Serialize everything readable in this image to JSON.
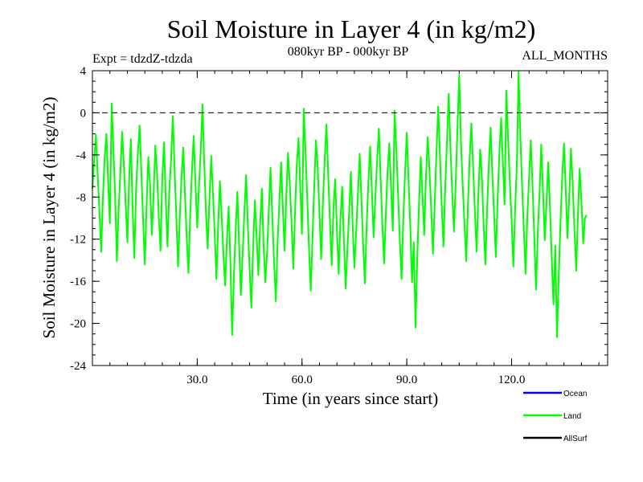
{
  "chart_data": {
    "type": "line",
    "title": "Soil Moisture in Layer 4 (in kg/m2)",
    "subtitle_left": "Expt = tdzdZ-tdzda",
    "subtitle_center": "080kyr BP - 000kyr BP",
    "subtitle_right": "ALL_MONTHS",
    "xlabel": "Time (in years since start)",
    "ylabel": "Soil Moisture in Layer 4 (in kg/m2)",
    "xlim": [
      0,
      147.5
    ],
    "ylim": [
      -24,
      4
    ],
    "x_ticks": [
      30,
      60,
      90,
      120
    ],
    "x_tick_labels": [
      "30.0",
      "60.0",
      "90.0",
      "120.0"
    ],
    "y_ticks": [
      4,
      0,
      -4,
      -8,
      -12,
      -16,
      -20,
      -24
    ],
    "y_tick_labels": [
      "4",
      "0",
      "-4",
      "-8",
      "-12",
      "-16",
      "-20",
      "-24"
    ],
    "reference_line": 0,
    "legend": [
      {
        "name": "Ocean",
        "color": "#0000ff"
      },
      {
        "name": "Land",
        "color": "#00ff00"
      },
      {
        "name": "AllSurf",
        "color": "#000000"
      }
    ],
    "series": [
      {
        "name": "Land",
        "color": "#00ff00",
        "x_start": 0,
        "x_step": 0.5,
        "values": [
          -7.2,
          -4.5,
          -2.1,
          -5.8,
          -9.4,
          -13.2,
          -8.1,
          -4.3,
          -2.0,
          -6.7,
          -10.5,
          0.9,
          -3.4,
          -7.8,
          -14.1,
          -9.2,
          -5.6,
          -1.8,
          -4.9,
          -8.6,
          -12.3,
          -6.4,
          -2.5,
          -9.1,
          -13.8,
          -7.3,
          -3.9,
          -1.2,
          -5.5,
          -10.1,
          -14.4,
          -8.7,
          -4.2,
          -6.9,
          -11.6,
          -7.8,
          -3.1,
          -5.7,
          -9.9,
          -13.1,
          -6.2,
          -2.8,
          -8.5,
          -12.7,
          -7.4,
          -4.6,
          -0.3,
          -5.1,
          -9.7,
          -14.6,
          -10.2,
          -6.1,
          -3.3,
          -7.9,
          -11.8,
          -15.2,
          -9.6,
          -5.4,
          -2.2,
          -6.8,
          -10.9,
          -7.1,
          -3.6,
          0.8,
          -4.8,
          -9.3,
          -12.9,
          -8.2,
          -4.1,
          -7.6,
          -11.4,
          -15.8,
          -10.7,
          -6.5,
          -9.8,
          -13.5,
          -16.4,
          -12.1,
          -8.9,
          -14.3,
          -21.1,
          -15.6,
          -11.2,
          -7.5,
          -12.6,
          -17.3,
          -13.4,
          -9.5,
          -5.9,
          -10.8,
          -14.9,
          -18.5,
          -12.8,
          -8.3,
          -11.7,
          -15.4,
          -10.6,
          -7.2,
          -12.5,
          -16.1,
          -13.3,
          -9.1,
          -5.2,
          -9.9,
          -14.2,
          -17.9,
          -12.4,
          -8.6,
          -4.7,
          -8.8,
          -13.1,
          -7.9,
          -3.8,
          -6.7,
          -10.4,
          -14.8,
          -9.3,
          -5.0,
          -2.4,
          -7.1,
          -11.5,
          0.4,
          -3.7,
          -8.2,
          -12.8,
          -16.9,
          -11.9,
          -6.9,
          -2.6,
          -5.3,
          -9.6,
          -13.9,
          -8.4,
          -4.4,
          -1.1,
          -5.8,
          -10.3,
          -14.5,
          -9.0,
          -6.3,
          -11.1,
          -15.3,
          -10.2,
          -7.0,
          -12.2,
          -16.7,
          -13.0,
          -9.4,
          -5.6,
          -10.7,
          -14.7,
          -11.3,
          -7.7,
          -3.9,
          -8.1,
          -12.5,
          -16.2,
          -10.9,
          -6.6,
          -3.2,
          -7.4,
          -11.8,
          -8.0,
          -4.5,
          -1.5,
          -6.1,
          -10.6,
          -14.3,
          -9.7,
          -5.5,
          -2.9,
          -7.3,
          -11.2,
          0.2,
          -3.4,
          -7.8,
          -12.0,
          -15.8,
          -10.1,
          -5.8,
          -1.9,
          -6.4,
          -10.8,
          -16.1,
          -12.3,
          -20.4,
          -13.6,
          -8.7,
          -4.2,
          -7.9,
          -11.6,
          -6.0,
          -2.3,
          -5.6,
          -9.2,
          -13.4,
          -8.5,
          -3.6,
          0.6,
          -4.1,
          -8.9,
          -12.7,
          -7.2,
          -2.7,
          1.8,
          -3.3,
          -7.5,
          -11.3,
          -6.6,
          -1.6,
          3.6,
          -2.8,
          -6.9,
          -10.4,
          -14.1,
          -8.8,
          -4.3,
          -1.0,
          -5.2,
          -9.5,
          -13.2,
          -7.7,
          -3.5,
          -6.2,
          -10.6,
          -14.4,
          -9.1,
          -4.9,
          -1.4,
          -5.9,
          -9.8,
          -13.7,
          -8.3,
          -3.8,
          -0.5,
          -4.6,
          -8.7,
          2.1,
          -2.4,
          -6.5,
          -10.2,
          -14.6,
          -9.4,
          -5.1,
          3.9,
          -2.2,
          -6.8,
          -11.0,
          -15.3,
          -10.0,
          -6.3,
          -2.6,
          -7.0,
          -11.7,
          -16.8,
          -11.4,
          -7.6,
          -3.0,
          -7.5,
          -12.1,
          -8.6,
          -4.7,
          -9.0,
          -13.9,
          -18.2,
          -12.6,
          -21.3,
          -15.4,
          -10.5,
          -6.0,
          -2.9,
          -7.3,
          -11.9,
          -8.0,
          -3.4,
          -6.7,
          -11.1,
          -15.0,
          -9.6,
          -5.3,
          -8.4,
          -12.4,
          -10.0,
          -9.7
        ]
      }
    ]
  }
}
